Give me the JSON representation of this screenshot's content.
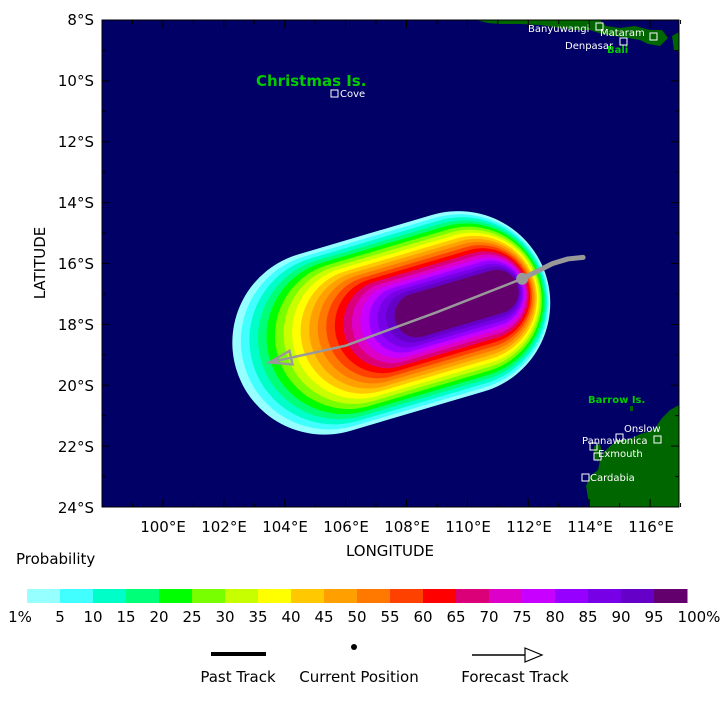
{
  "axes": {
    "xlabel": "LONGITUDE",
    "ylabel": "LATITUDE",
    "lat_ticks": [
      "8°S",
      "10°S",
      "12°S",
      "14°S",
      "16°S",
      "18°S",
      "20°S",
      "22°S",
      "24°S"
    ],
    "lon_ticks": [
      "100°E",
      "102°E",
      "104°E",
      "106°E",
      "108°E",
      "110°E",
      "112°E",
      "114°E",
      "116°E"
    ],
    "lat_range_deg_s": [
      8,
      24
    ],
    "lon_range_deg_e": [
      98,
      117
    ]
  },
  "places": {
    "christmas_island": "Christmas Is.",
    "cove": "Cove",
    "banyuwangi": "Banyuwangi",
    "mataram": "Mataram",
    "denpasar": "Denpasar",
    "bali": "Bali",
    "barrow_island": "Barrow Is.",
    "onslow": "Onslow",
    "pannawonica": "Pannawonica",
    "exmouth": "Exmouth",
    "cardabia": "Cardabia"
  },
  "legend": {
    "title": "Probability",
    "labels": [
      "1%",
      "5",
      "10",
      "15",
      "20",
      "25",
      "30",
      "35",
      "40",
      "45",
      "50",
      "55",
      "60",
      "65",
      "70",
      "75",
      "80",
      "85",
      "90",
      "95",
      "100%"
    ],
    "colors": [
      "#96ffff",
      "#41ffff",
      "#00ffc8",
      "#00ff78",
      "#00ff00",
      "#78ff00",
      "#c8ff00",
      "#ffff00",
      "#ffc800",
      "#ffa000",
      "#ff7800",
      "#ff4100",
      "#ff0000",
      "#dc0078",
      "#dc00c8",
      "#c800ff",
      "#9600ff",
      "#7800e6",
      "#6400c8",
      "#64006e"
    ],
    "past_track": "Past Track",
    "current_position": "Current Position",
    "forecast_track": "Forecast Track"
  },
  "colors": {
    "ocean": "#000066",
    "land": "#006600",
    "place_label": "#ffffff",
    "region_label": "#00cc00",
    "track": "#999999"
  },
  "chart_data": {
    "type": "heatmap",
    "description_units": "degrees",
    "past_track": [
      [
        113.8,
        -15.8
      ],
      [
        113.3,
        -15.85
      ],
      [
        112.8,
        -16.0
      ],
      [
        111.8,
        -16.5
      ]
    ],
    "current_position": [
      111.8,
      -16.5
    ],
    "forecast_track": [
      [
        111.8,
        -16.5
      ],
      [
        109.0,
        -17.6
      ],
      [
        106.0,
        -18.7
      ],
      [
        103.5,
        -19.25
      ]
    ],
    "probability_levels_percent": [
      1,
      5,
      10,
      15,
      20,
      25,
      30,
      35,
      40,
      45,
      50,
      55,
      60,
      65,
      70,
      75,
      80,
      85,
      90,
      95,
      100
    ]
  }
}
